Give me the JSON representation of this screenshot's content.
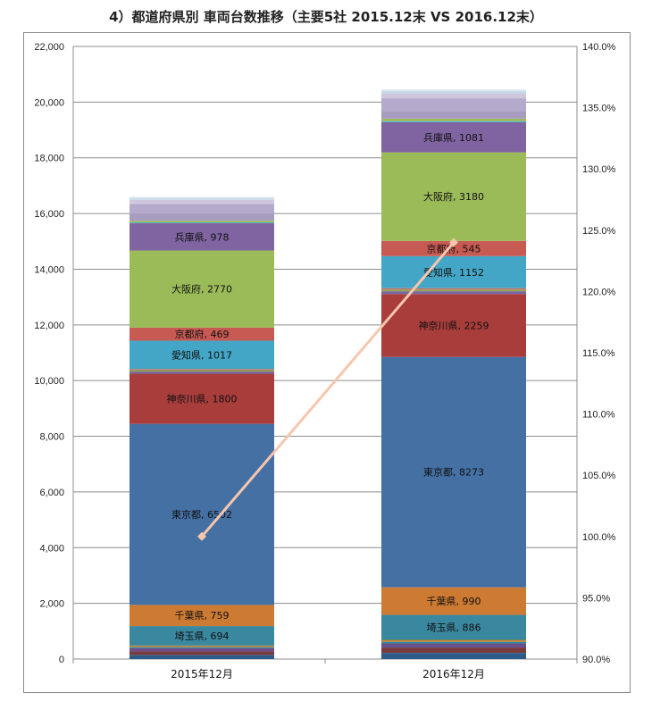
{
  "title": "4）都道府県別 車両台数推移（主要5社 2015.12末 VS 2016.12末）",
  "colors": {
    "grid": "#8c8c8c",
    "line": "#f7c6ad"
  },
  "chart_data": {
    "type": "bar",
    "stacked": true,
    "categories": [
      "2015年12月",
      "2016年12月"
    ],
    "ylim": [
      0,
      22000
    ],
    "yticks": [
      "0",
      "2,000",
      "4,000",
      "6,000",
      "8,000",
      "10,000",
      "12,000",
      "14,000",
      "16,000",
      "18,000",
      "20,000",
      "22,000"
    ],
    "y2lim": [
      90.0,
      140.0
    ],
    "y2ticks": [
      "90.0%",
      "95.0%",
      "100.0%",
      "105.0%",
      "110.0%",
      "115.0%",
      "120.0%",
      "125.0%",
      "130.0%",
      "135.0%",
      "140.0%"
    ],
    "grid": true,
    "legend": "none",
    "series": [
      {
        "color": "#2e5c8a",
        "values": [
          150,
          220
        ],
        "labels": [
          "",
          ""
        ]
      },
      {
        "color": "#7a3a3a",
        "values": [
          120,
          180
        ],
        "labels": [
          "",
          ""
        ]
      },
      {
        "color": "#6b4f8a",
        "values": [
          120,
          160
        ],
        "labels": [
          "",
          ""
        ]
      },
      {
        "color": "#2d8a9e",
        "values": [
          40,
          60
        ],
        "labels": [
          "",
          ""
        ]
      },
      {
        "color": "#d97a2e",
        "values": [
          40,
          50
        ],
        "labels": [
          "",
          ""
        ]
      },
      {
        "color": "#5a7a30",
        "values": [
          20,
          30
        ],
        "labels": [
          "",
          ""
        ]
      },
      {
        "color": "#3a87a0",
        "values": [
          694,
          886
        ],
        "labels": [
          "埼玉県, 694",
          "埼玉県, 886"
        ]
      },
      {
        "color": "#cd7a33",
        "values": [
          759,
          990
        ],
        "labels": [
          "千葉県, 759",
          "千葉県, 990"
        ]
      },
      {
        "color": "#4470a4",
        "values": [
          6502,
          8273
        ],
        "labels": [
          "東京都, 6502",
          "東京都, 8273"
        ]
      },
      {
        "color": "#a83d3b",
        "values": [
          1800,
          2259
        ],
        "labels": [
          "神奈川県, 1800",
          "神奈川県, 2259"
        ]
      },
      {
        "color": "#7a66a0",
        "values": [
          80,
          100
        ],
        "labels": [
          "",
          ""
        ]
      },
      {
        "color": "#8aa84a",
        "values": [
          50,
          60
        ],
        "labels": [
          "",
          ""
        ]
      },
      {
        "color": "#c86a6a",
        "values": [
          40,
          50
        ],
        "labels": [
          "",
          ""
        ]
      },
      {
        "color": "#44a6c6",
        "values": [
          1017,
          1152
        ],
        "labels": [
          "愛知県, 1017",
          "愛知県, 1152"
        ]
      },
      {
        "color": "#c85a54",
        "values": [
          469,
          545
        ],
        "labels": [
          "京都府, 469",
          "京都府, 545"
        ]
      },
      {
        "color": "#9bbb59",
        "values": [
          2770,
          3180
        ],
        "labels": [
          "大阪府, 2770",
          "大阪府, 3180"
        ]
      },
      {
        "color": "#8064a2",
        "values": [
          978,
          1081
        ],
        "labels": [
          "兵庫県, 978",
          "兵庫県, 1081"
        ]
      },
      {
        "color": "#4bacc6",
        "values": [
          30,
          40
        ],
        "labels": [
          "",
          ""
        ]
      },
      {
        "color": "#9bbb59",
        "values": [
          60,
          90
        ],
        "labels": [
          "",
          ""
        ]
      },
      {
        "color": "#a69cc0",
        "values": [
          250,
          280
        ],
        "labels": [
          "",
          ""
        ]
      },
      {
        "color": "#b5a9cc",
        "values": [
          350,
          450
        ],
        "labels": [
          "",
          ""
        ]
      },
      {
        "color": "#cfc6de",
        "values": [
          150,
          180
        ],
        "labels": [
          "",
          ""
        ]
      },
      {
        "color": "#c6dbe8",
        "values": [
          60,
          80
        ],
        "labels": [
          "",
          ""
        ]
      },
      {
        "color": "#dde6f0",
        "values": [
          50,
          60
        ],
        "labels": [
          "",
          ""
        ]
      }
    ],
    "line": {
      "axis": "right",
      "values": [
        100.0,
        124.0
      ]
    }
  }
}
